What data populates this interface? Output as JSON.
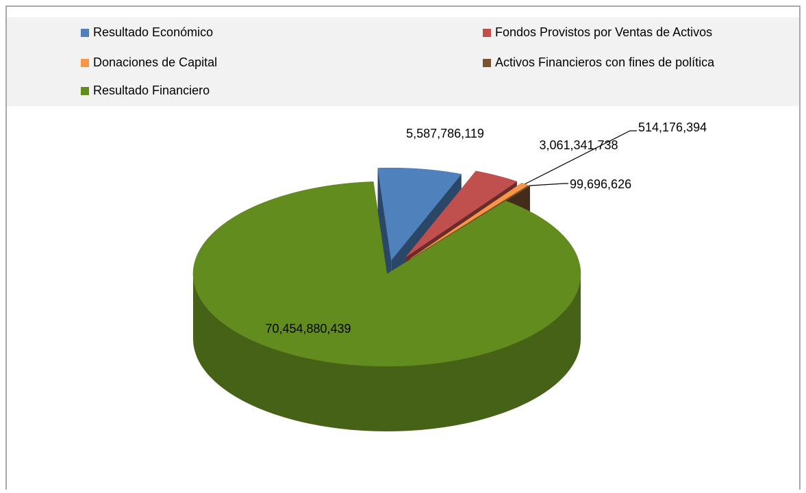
{
  "chart_data": {
    "type": "pie",
    "three_d": true,
    "categories": [
      "Resultado Económico",
      "Fondos Provistos por Ventas de Activos",
      "Donaciones de Capital",
      "Activos Financieros con fines de política",
      "Resultado Financiero"
    ],
    "values": [
      5587786119,
      3061341738,
      514176394,
      99696626,
      70454880439
    ],
    "value_labels": [
      "5,587,786,119",
      "3,061,341,738",
      "514,176,394",
      "99,696,626",
      "70,454,880,439"
    ],
    "colors": [
      "#4f81bd",
      "#c0504d",
      "#f79646",
      "#7a5230",
      "#638c1f"
    ],
    "legend": "top"
  }
}
